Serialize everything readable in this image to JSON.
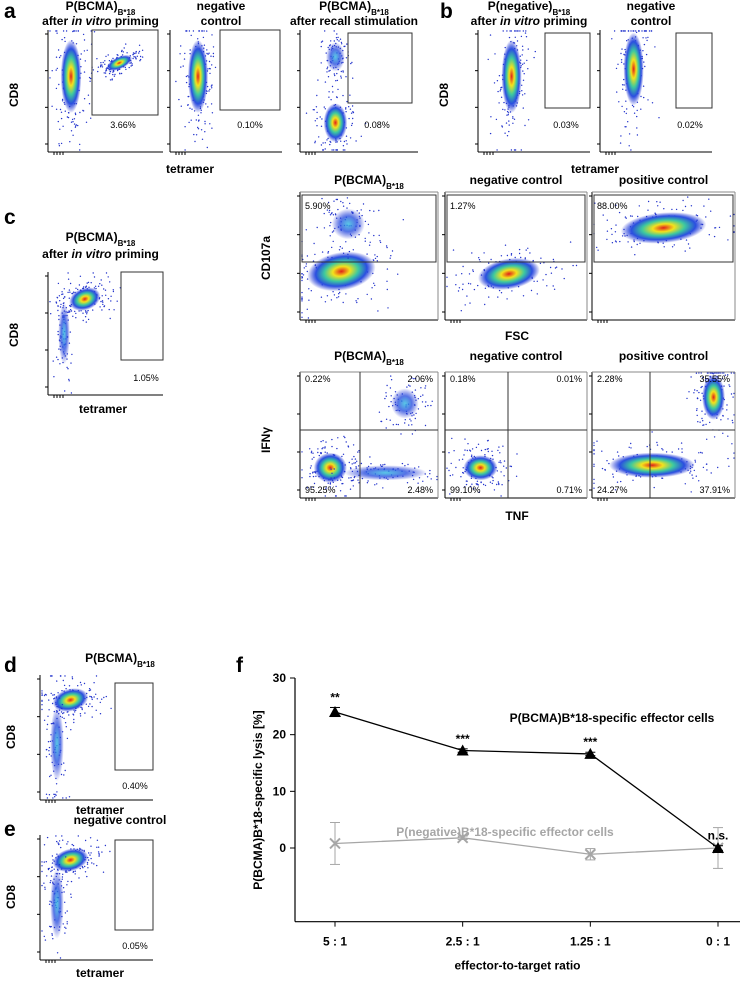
{
  "panel_labels": [
    "a",
    "b",
    "c",
    "d",
    "e",
    "f"
  ],
  "axis_labels": {
    "cd8": "CD8",
    "tetramer": "tetramer",
    "cd107a": "CD107a",
    "fsc": "FSC",
    "ifng": "IFNγ",
    "tnf": "TNF"
  },
  "plots": [
    {
      "title": [
        [
          {
            "text": "P(BCMA)"
          },
          {
            "text": "B*18",
            "style": "sub"
          }
        ],
        [
          {
            "text": "after "
          },
          {
            "text": "in vitro",
            "style": "italic"
          },
          {
            "text": " priming"
          }
        ]
      ],
      "gates": [
        "3.66%"
      ]
    },
    {
      "title": [
        [
          {
            "text": "negative"
          }
        ],
        [
          {
            "text": "control"
          }
        ]
      ],
      "gates": [
        "0.10%"
      ]
    },
    {
      "title": [
        [
          {
            "text": "P(BCMA)"
          },
          {
            "text": "B*18",
            "style": "sub"
          }
        ],
        [
          {
            "text": "after recall stimulation"
          }
        ]
      ],
      "gates": [
        "0.08%"
      ]
    },
    {
      "title": [
        [
          {
            "text": "P(negative)"
          },
          {
            "text": "B*18",
            "style": "sub"
          }
        ],
        [
          {
            "text": "after "
          },
          {
            "text": "in vitro",
            "style": "italic"
          },
          {
            "text": " priming"
          }
        ]
      ],
      "gates": [
        "0.03%"
      ]
    },
    {
      "title": [
        [
          {
            "text": "negative"
          }
        ],
        [
          {
            "text": "control"
          }
        ]
      ],
      "gates": [
        "0.02%"
      ]
    },
    {
      "title": [
        [
          {
            "text": "P(BCMA)"
          },
          {
            "text": "B*18",
            "style": "sub"
          }
        ],
        [
          {
            "text": "after "
          },
          {
            "text": "in vitro",
            "style": "italic"
          },
          {
            "text": " priming"
          }
        ]
      ],
      "gates": [
        "1.05%"
      ]
    },
    {
      "title": [
        [
          {
            "text": "P(BCMA)"
          },
          {
            "text": "B*18",
            "style": "sub"
          }
        ]
      ],
      "gates": [
        "5.90%"
      ]
    },
    {
      "title": [
        [
          {
            "text": "negative control"
          }
        ]
      ],
      "gates": [
        "1.27%"
      ]
    },
    {
      "title": [
        [
          {
            "text": "positive control"
          }
        ]
      ],
      "gates": [
        "88.00%"
      ]
    },
    {
      "title": [
        [
          {
            "text": "P(BCMA)"
          },
          {
            "text": "B*18",
            "style": "sub"
          }
        ]
      ],
      "gates": [
        "0.22%",
        "2.06%",
        "95.25%",
        "2.48%"
      ]
    },
    {
      "title": [
        [
          {
            "text": "negative control"
          }
        ]
      ],
      "gates": [
        "0.18%",
        "0.01%",
        "99.10%",
        "0.71%"
      ]
    },
    {
      "title": [
        [
          {
            "text": "positive control"
          }
        ]
      ],
      "gates": [
        "2.28%",
        "35.55%",
        "24.27%",
        "37.91%"
      ]
    },
    {
      "title": [
        [
          {
            "text": "P(BCMA)"
          },
          {
            "text": "B*18",
            "style": "sub"
          }
        ]
      ],
      "gates": [
        "0.40%"
      ]
    },
    {
      "title": [
        [
          {
            "text": "negative control"
          }
        ]
      ],
      "gates": [
        "0.05%"
      ]
    }
  ],
  "chart_data": {
    "type": "line",
    "y_label": "P(BCMA)B*18-specific lysis [%]",
    "x_label": "effector-to-target ratio",
    "categories": [
      "5 : 1",
      "2.5 : 1",
      "1.25 : 1",
      "0 : 1"
    ],
    "ylim": [
      -13,
      30
    ],
    "yticks": [
      0,
      10,
      20,
      30
    ],
    "series": [
      {
        "name": "P(BCMA)B*18-specific effector cells",
        "color": "#000000",
        "marker": "triangle",
        "values": [
          24.0,
          17.2,
          16.6,
          0.0
        ],
        "errors": [
          0.8,
          0.3,
          0.3,
          0.4
        ]
      },
      {
        "name": "P(negative)B*18-specific effector cells",
        "color": "#a6a6a6",
        "marker": "x",
        "values": [
          0.8,
          1.8,
          -1.1,
          0.0
        ],
        "errors": [
          3.7,
          0.3,
          1.0,
          3.6
        ]
      }
    ],
    "annotations": [
      "**",
      "***",
      "***",
      "n.s."
    ]
  }
}
